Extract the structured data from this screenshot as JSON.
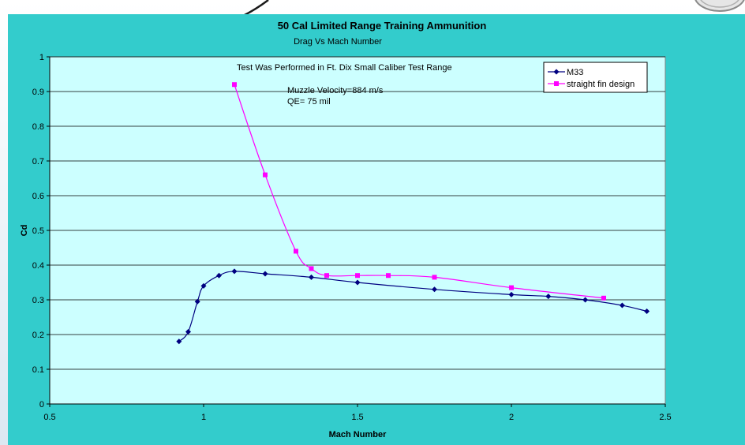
{
  "colors": {
    "frame": "#33cccc",
    "plot_bg": "#ccffff",
    "m33": "#000080",
    "fin": "#ff00ff"
  },
  "annotations": {
    "test_range": "Test Was Performed in Ft. Dix Small Caliber Test Range",
    "muzzle_velocity": "Muzzle Velocity=884 m/s",
    "qe": "QE= 75 mil"
  },
  "chart_data": {
    "type": "line",
    "title": "50 Cal Limited Range Training Ammunition",
    "subtitle": "Drag Vs Mach Number",
    "xlabel": "Mach Number",
    "ylabel": "Cd",
    "xlim": [
      0.5,
      2.5
    ],
    "ylim": [
      0,
      1
    ],
    "x_ticks": [
      "0.5",
      "1",
      "1.5",
      "2",
      "2.5"
    ],
    "y_ticks": [
      "0",
      "0.1",
      "0.2",
      "0.3",
      "0.4",
      "0.5",
      "0.6",
      "0.7",
      "0.8",
      "0.9",
      "1"
    ],
    "grid": "horizontal",
    "legend_position": "top-right",
    "series": [
      {
        "name": "M33",
        "color": "#000080",
        "marker": "diamond",
        "points": [
          [
            0.92,
            0.18
          ],
          [
            0.95,
            0.208
          ],
          [
            0.98,
            0.295
          ],
          [
            1.0,
            0.34
          ],
          [
            1.05,
            0.37
          ],
          [
            1.1,
            0.382
          ],
          [
            1.2,
            0.375
          ],
          [
            1.35,
            0.365
          ],
          [
            1.5,
            0.35
          ],
          [
            1.75,
            0.33
          ],
          [
            2.0,
            0.315
          ],
          [
            2.12,
            0.31
          ],
          [
            2.24,
            0.3
          ],
          [
            2.36,
            0.284
          ],
          [
            2.44,
            0.267
          ]
        ]
      },
      {
        "name": "straight fin design",
        "color": "#ff00ff",
        "marker": "square",
        "points": [
          [
            1.1,
            0.92
          ],
          [
            1.2,
            0.66
          ],
          [
            1.3,
            0.44
          ],
          [
            1.35,
            0.39
          ],
          [
            1.4,
            0.37
          ],
          [
            1.5,
            0.37
          ],
          [
            1.6,
            0.37
          ],
          [
            1.75,
            0.365
          ],
          [
            2.0,
            0.335
          ],
          [
            2.3,
            0.305
          ]
        ]
      }
    ]
  }
}
